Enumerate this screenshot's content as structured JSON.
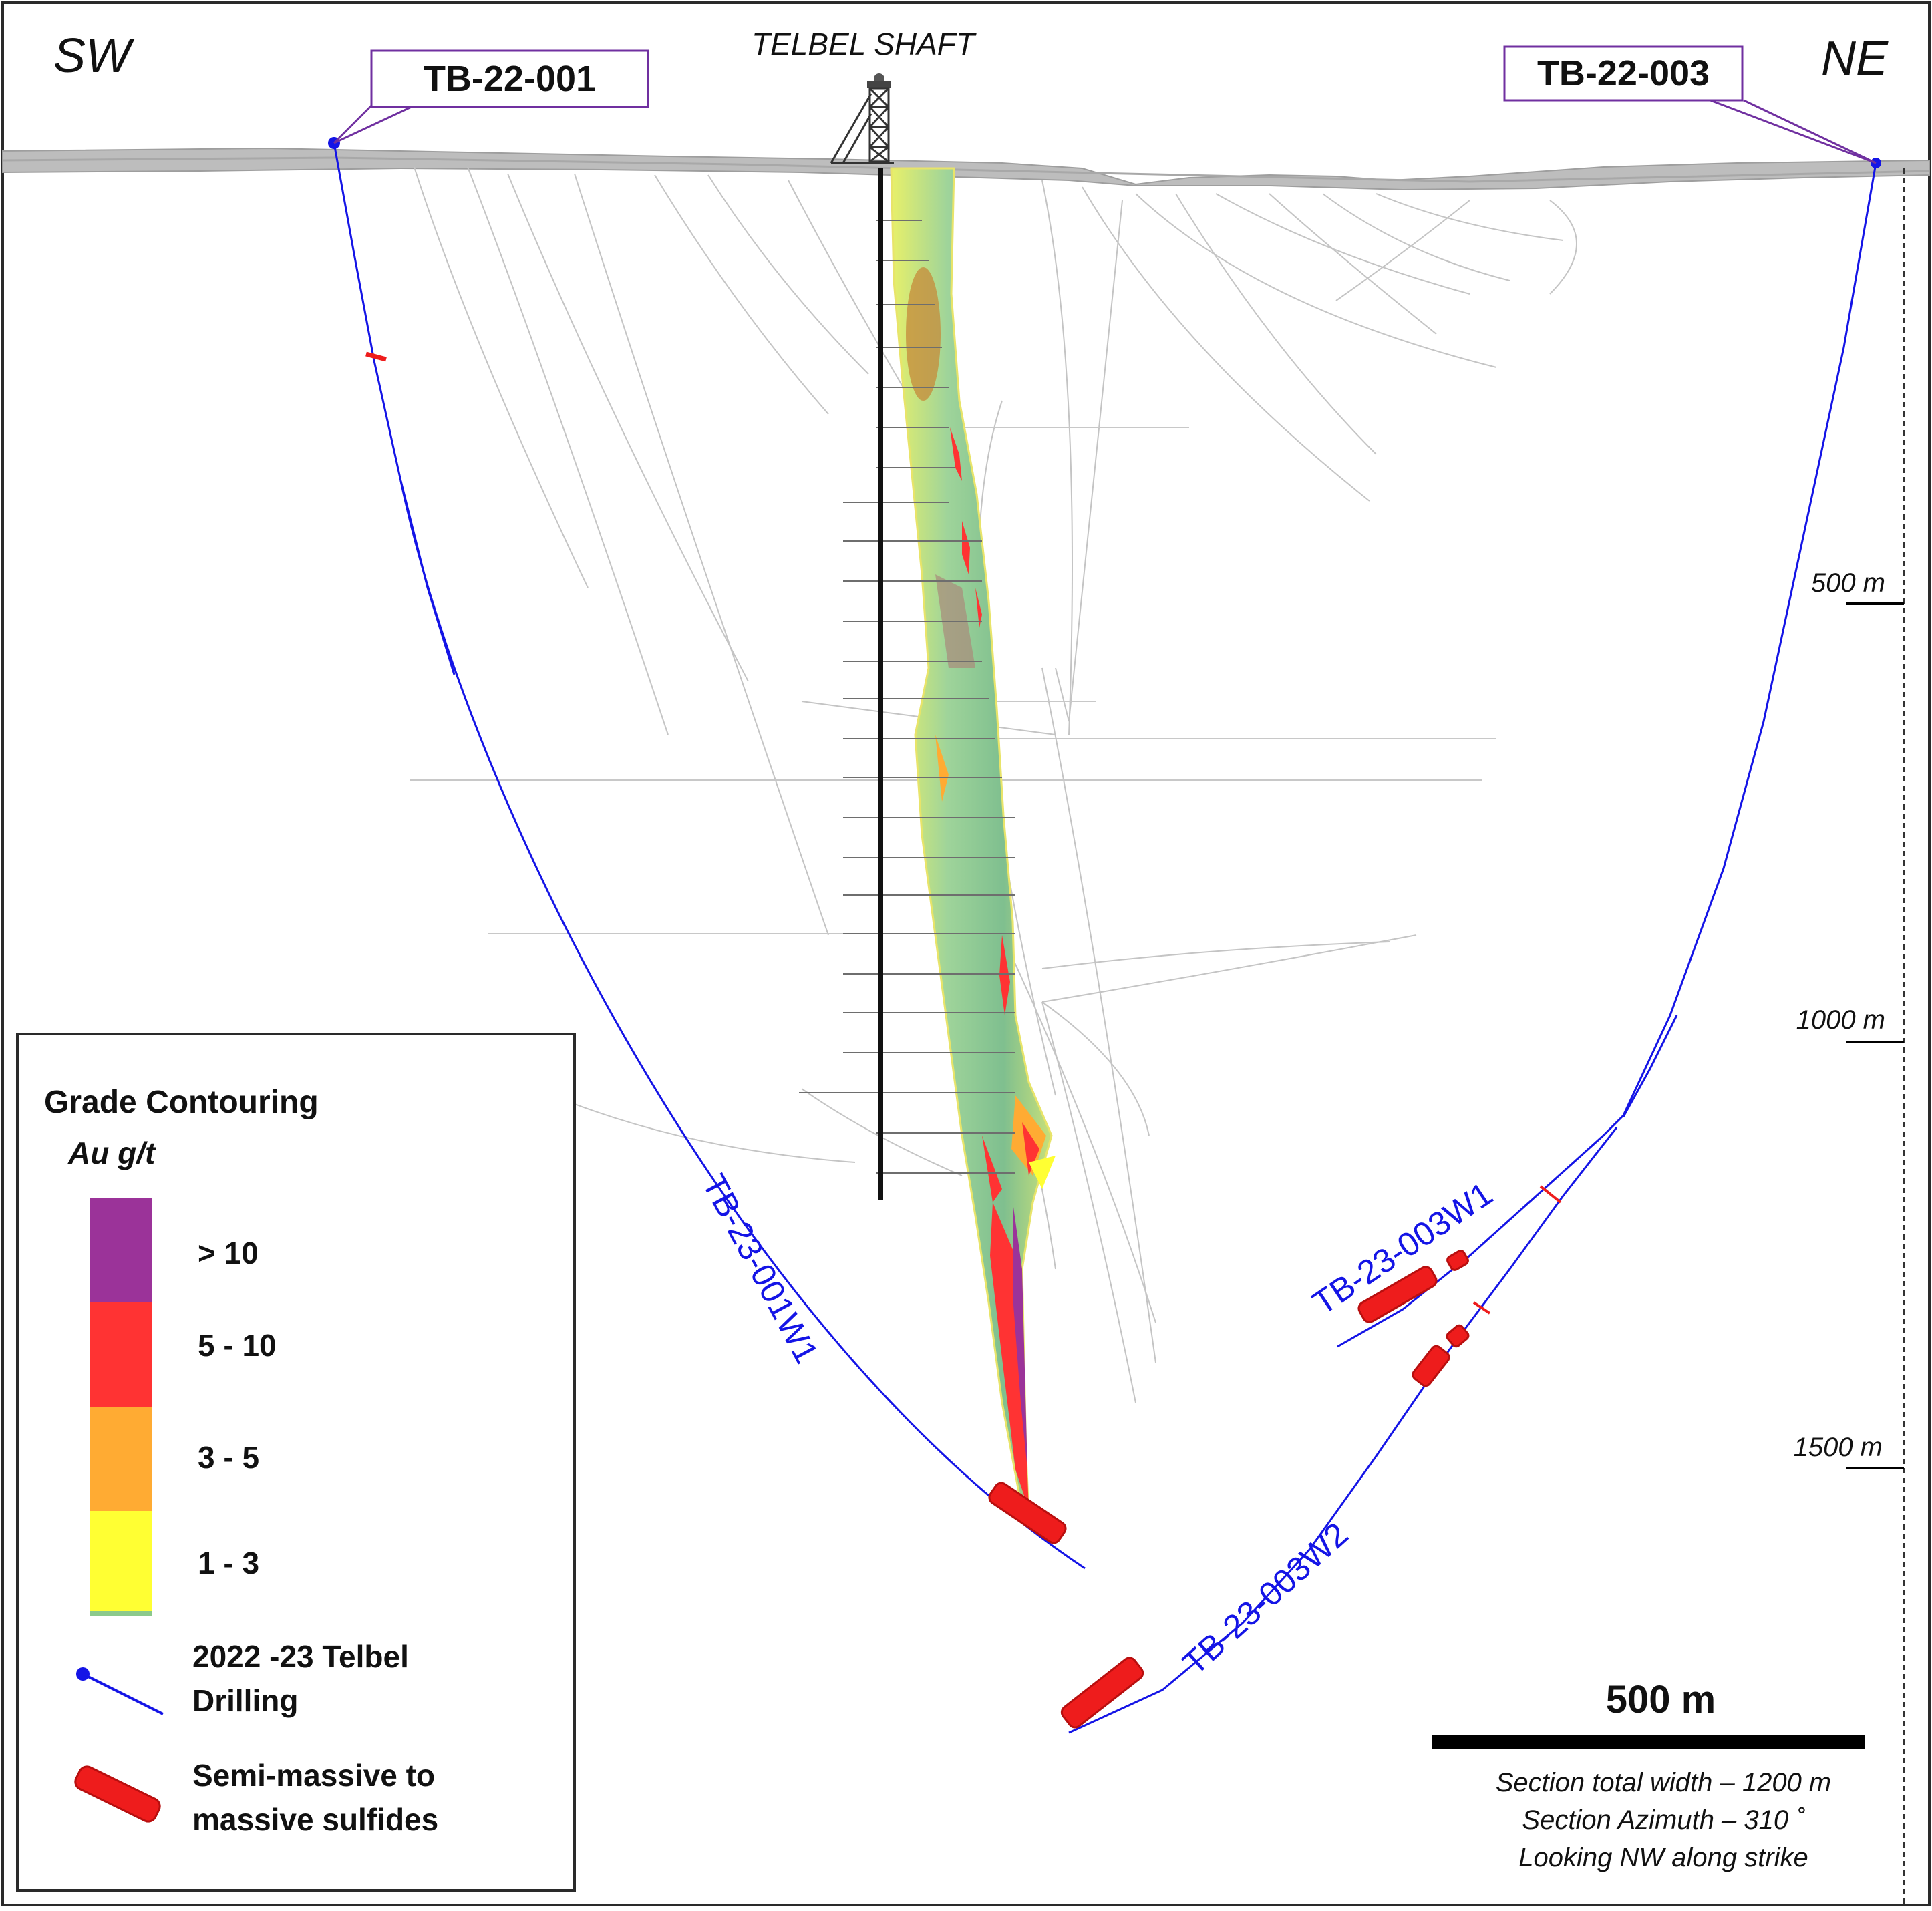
{
  "orientation": {
    "left": "SW",
    "right": "NE"
  },
  "shaft": {
    "label": "TELBEL SHAFT"
  },
  "collars": {
    "hole_a": "TB-22-001",
    "hole_b": "TB-22-003"
  },
  "wedges": {
    "w1_sw": "TB-23-001W1",
    "w1_ne": "TB-23-003W1",
    "w2_ne": "TB-23-003W2"
  },
  "depth_scale": {
    "ticks": [
      {
        "label": "500 m",
        "value": 500
      },
      {
        "label": "1000 m",
        "value": 1000
      },
      {
        "label": "1500 m",
        "value": 1500
      }
    ]
  },
  "legend": {
    "title": "Grade Contouring",
    "unit": "Au g/t",
    "grades": [
      {
        "label": "> 10",
        "color": "#9b3399"
      },
      {
        "label": "5 - 10",
        "color": "#ff3333"
      },
      {
        "label": "3 - 5",
        "color": "#ffab33"
      },
      {
        "label": "1 - 3",
        "color": "#ffff33"
      }
    ],
    "drilling_line1": "2022 -23 Telbel",
    "drilling_line2": "Drilling",
    "sulfides_line1": "Semi-massive to",
    "sulfides_line2": "massive sulfides"
  },
  "scale_bar": {
    "label": "500 m",
    "note1": "Section total width – 1200 m",
    "note2": "Section Azimuth – 310 ˚",
    "note3": "Looking NW along strike"
  },
  "colors": {
    "drill_trace": "#1414e6",
    "sulfide": "#ee1c1c",
    "collar_box_border": "#7030a0",
    "ground": "#bdbdbd",
    "zone_green": "#8cc98c"
  }
}
